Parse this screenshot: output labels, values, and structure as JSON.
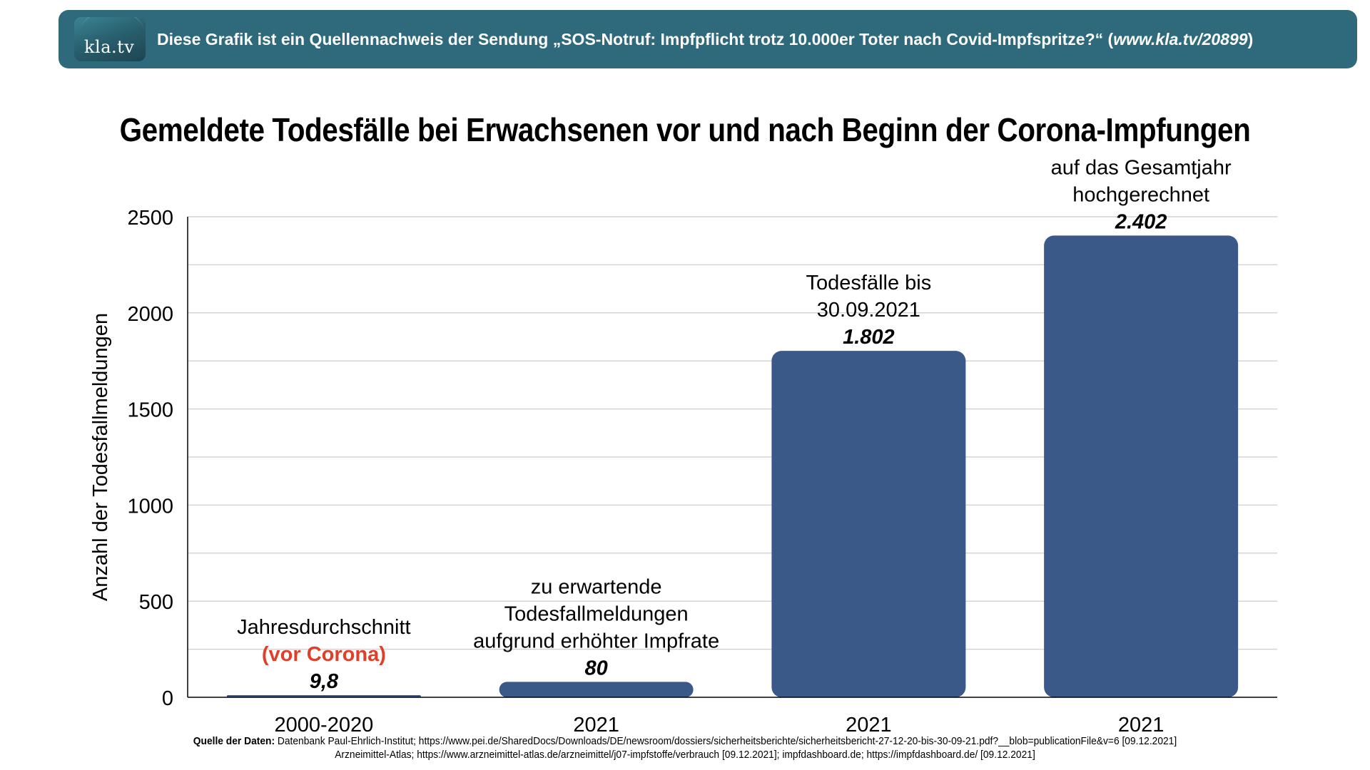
{
  "banner": {
    "logo_text": "kla.tv",
    "text_prefix": "Diese Grafik ist ein Quellennachweis der Sendung „SOS-Notruf: Impfpflicht trotz 10.000er Toter nach Covid-Impfspritze?“ (",
    "link": "www.kla.tv/20899",
    "text_suffix": ")"
  },
  "colors": {
    "bar": "#3a5888",
    "highlight": "#e0402a",
    "banner": "#2e6a7b",
    "grid": "#d4d4d4"
  },
  "chart_data": {
    "type": "bar",
    "title": "Gemeldete Todesfälle bei Erwachsenen vor und nach Beginn der Corona-Impfungen",
    "xlabel": "",
    "ylabel": "Anzahl der Todesfallmeldungen",
    "ylim": [
      0,
      2500
    ],
    "yticks": [
      0,
      500,
      1000,
      1500,
      2000,
      2500
    ],
    "ytick_labels": [
      "0",
      "500",
      "1000",
      "1500",
      "2000",
      "2500"
    ],
    "grid": true,
    "minor_grid_step": 250,
    "categories": [
      "2000-2020",
      "2021",
      "2021",
      "2021"
    ],
    "values": [
      9.8,
      80,
      1802,
      2402
    ],
    "value_labels": [
      "9,8",
      "80",
      "1.802",
      "2.402"
    ],
    "annotations": [
      {
        "lines": [
          "Jahresdurchschnitt"
        ],
        "highlight": "(vor Corona)"
      },
      {
        "lines": [
          "zu erwartende",
          "Todesfallmeldungen",
          "aufgrund erhöhter Impfrate"
        ],
        "highlight": ""
      },
      {
        "lines": [
          "Todesfälle bis",
          "30.09.2021"
        ],
        "highlight": ""
      },
      {
        "lines": [
          "auf das Gesamtjahr",
          "hochgerechnet"
        ],
        "highlight": ""
      }
    ]
  },
  "source": {
    "label": "Quelle der Daten:",
    "line1": "Datenbank Paul-Ehrlich-Institut; https://www.pei.de/SharedDocs/Downloads/DE/newsroom/dossiers/sicherheitsberichte/sicherheitsbericht-27-12-20-bis-30-09-21.pdf?__blob=publicationFile&v=6 [09.12.2021]",
    "line2": "Arzneimittel-Atlas; https://www.arzneimittel-atlas.de/arzneimittel/j07-impfstoffe/verbrauch [09.12.2021]; impfdashboard.de; https://impfdashboard.de/ [09.12.2021]"
  }
}
